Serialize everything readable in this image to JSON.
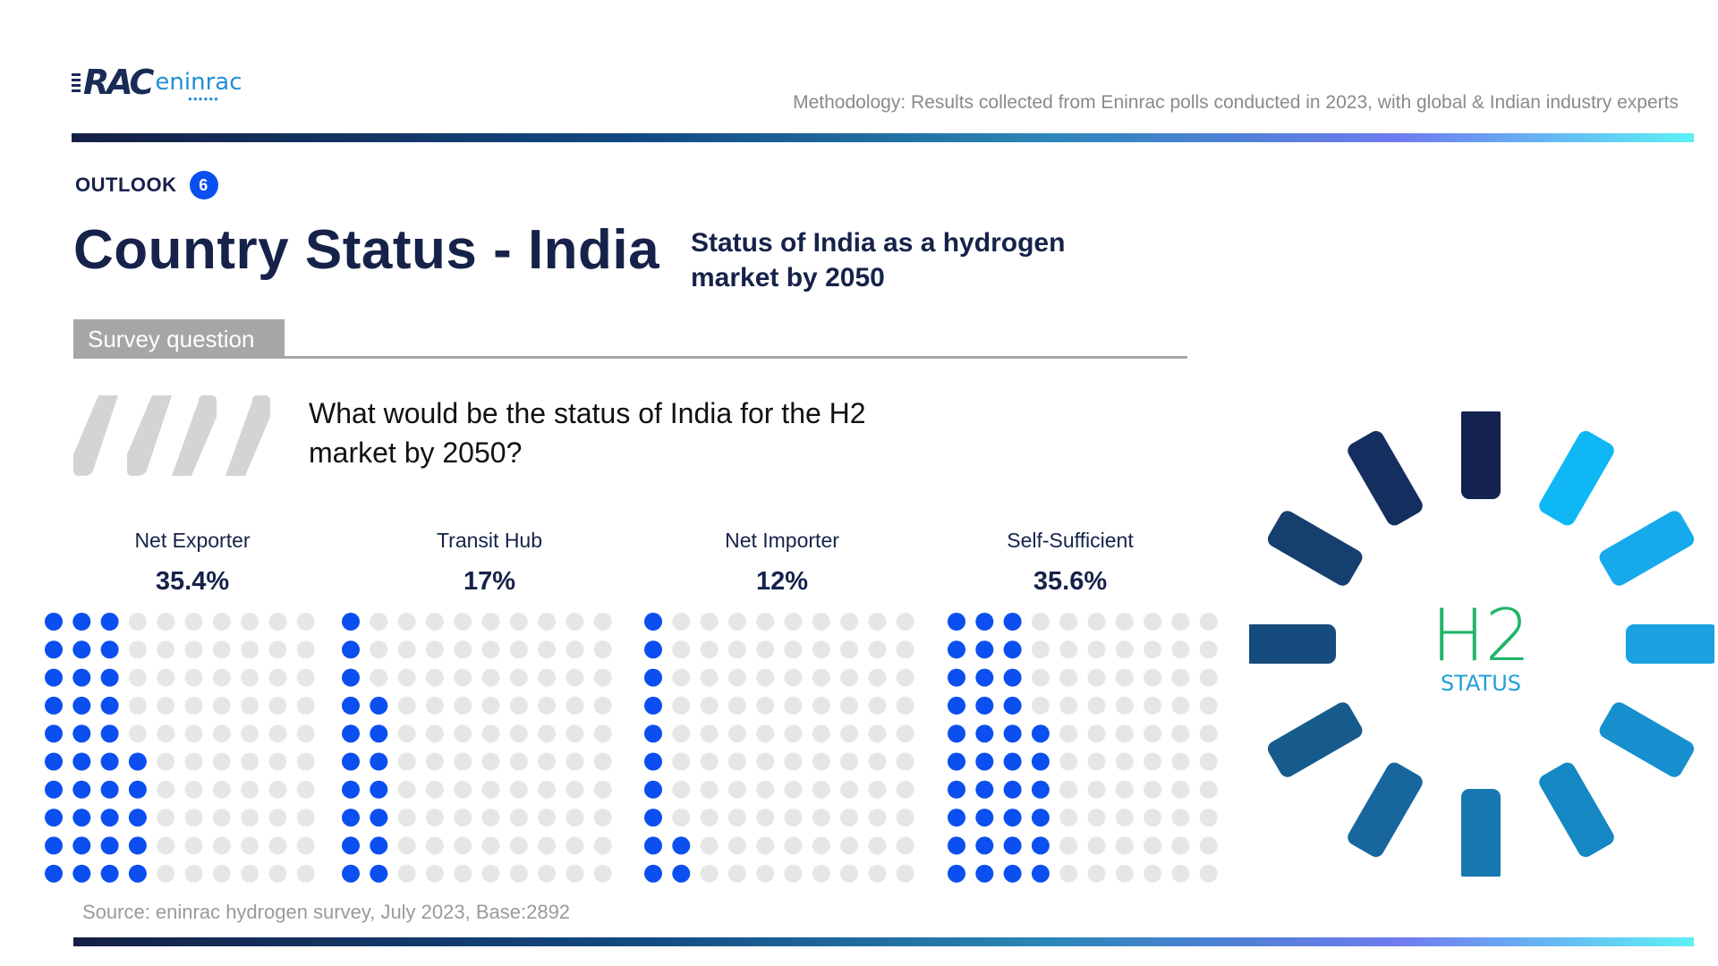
{
  "brand": {
    "logo_main": "RAC",
    "logo_secondary": "eninrac"
  },
  "methodology": "Methodology: Results collected from Eninrac polls conducted in 2023, with global & Indian industry experts",
  "outlook": {
    "label": "OUTLOOK",
    "number": "6"
  },
  "title": "Country Status - India",
  "subtitle": "Status of India as a hydrogen market by 2050",
  "survey_label": "Survey question",
  "question": "What would be the status of India for the H2 market by 2050?",
  "source": "Source: eninrac hydrogen survey, July 2023, Base:2892",
  "graphic": {
    "big_text": "H2",
    "small_text": "STATUS"
  },
  "colors": {
    "accent": "#0b4ff0",
    "dot_empty": "#e6e6e6",
    "navy": "#16224a",
    "green": "#1fb56a",
    "cyan": "#1f9fd8"
  },
  "chart_data": {
    "type": "waffle",
    "grid": "10x10",
    "categories": [
      "Net Exporter",
      "Transit Hub",
      "Net Importer",
      "Self-Sufficient"
    ],
    "values": [
      35.4,
      17,
      12,
      35.6
    ],
    "labels": [
      "35.4%",
      "17%",
      "12%",
      "35.6%"
    ],
    "unit": "%"
  }
}
